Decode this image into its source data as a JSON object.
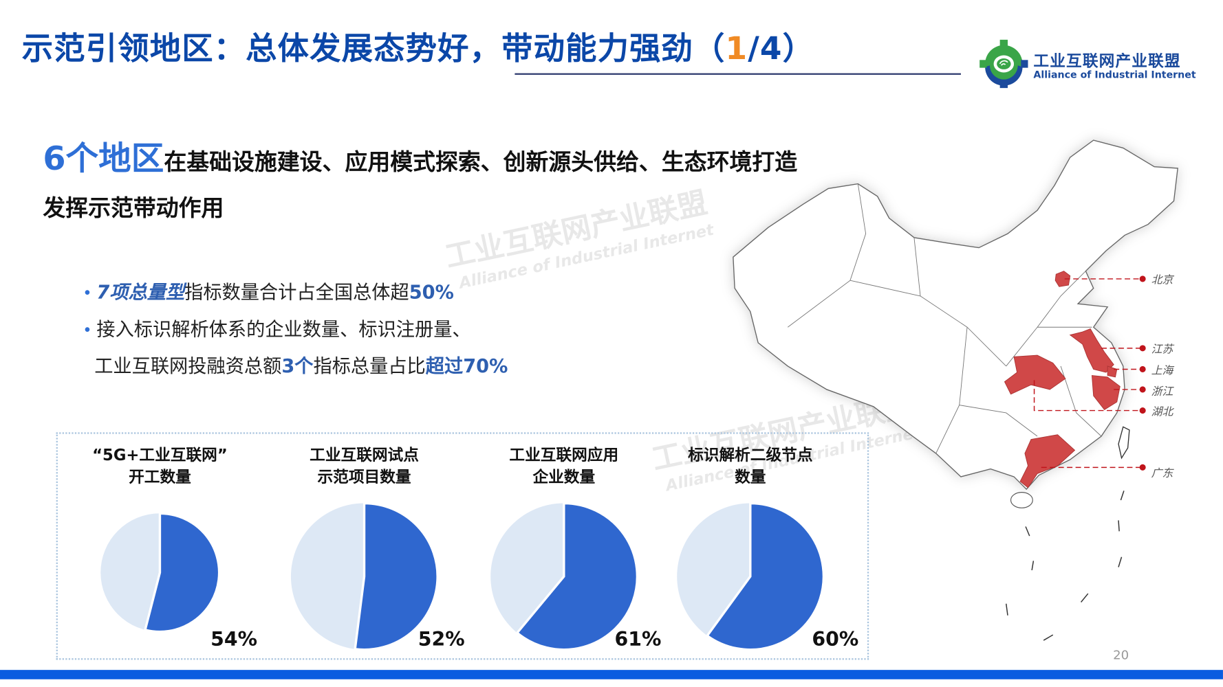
{
  "header": {
    "title_prefix": "示范引领地区：总体发展态势好，带动能力强劲（",
    "title_page": "1",
    "title_suffix": "/4）",
    "accent_color": "#f08a24",
    "title_color": "#0b47a8"
  },
  "logo": {
    "name_cn": "工业互联网产业联盟",
    "name_en": "Alliance of Industrial Internet"
  },
  "watermark": {
    "cn": "工业互联网产业联盟",
    "en": "Alliance of Industrial Internet"
  },
  "headline": {
    "highlight": "6个地区",
    "text": "在基础设施建设、应用模式探索、创新源头供给、生态环境打造",
    "line2": "发挥示范带动作用"
  },
  "bullets": [
    {
      "hl1": "7项总量型",
      "text": "指标数量合计占全国总体超",
      "hl2": "50%"
    },
    {
      "text": "接入标识解析体系的企业数量、标识注册量、"
    },
    {
      "text": "工业互联网投融资总额",
      "hl1": "3个",
      "text2": "指标总量占比",
      "hl2": "超过70%"
    }
  ],
  "chart_data": {
    "type": "pie",
    "colors": {
      "share": "#2f67cf",
      "rest": "#dde8f5"
    },
    "charts": [
      {
        "title_line1": "“5G+工业互联网”",
        "title_line2": "开工数量",
        "value": 54,
        "label": "54%"
      },
      {
        "title_line1": "工业互联网试点",
        "title_line2": "示范项目数量",
        "value": 52,
        "label": "52%"
      },
      {
        "title_line1": "工业互联网应用",
        "title_line2": "企业数量",
        "value": 61,
        "label": "61%"
      },
      {
        "title_line1": "标识解析二级节点",
        "title_line2": "数量",
        "value": 60,
        "label": "60%"
      }
    ]
  },
  "map": {
    "highlight_color": "#d04848",
    "regions": [
      "北京",
      "江苏",
      "上海",
      "浙江",
      "湖北",
      "广东"
    ]
  },
  "footer": {
    "page_number": "20",
    "bar_color": "#0a5ce0"
  }
}
